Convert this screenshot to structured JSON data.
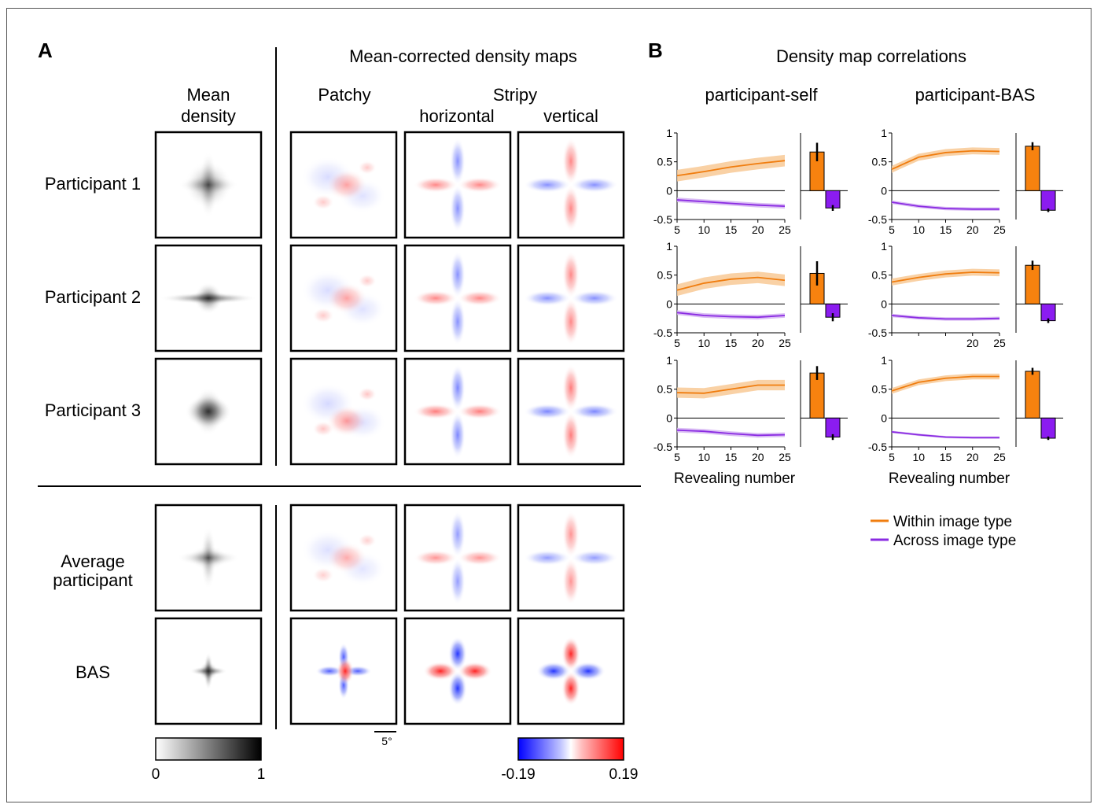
{
  "panel_a": {
    "letter": "A",
    "section_title": "Mean-corrected density maps",
    "col_mean": [
      "Mean",
      "density"
    ],
    "col_patchy": "Patchy",
    "col_stripy": "Stripy",
    "col_horizontal": "horizontal",
    "col_vertical": "vertical",
    "row_p1": "Participant 1",
    "row_p2": "Participant 2",
    "row_p3": "Participant 3",
    "row_avg": [
      "Average",
      "participant"
    ],
    "row_bas": "BAS",
    "scale_bar": "5°",
    "cbar_gray_min": "0",
    "cbar_gray_max": "1",
    "cbar_div_min": "-0.19",
    "cbar_div_max": "0.19"
  },
  "panel_b": {
    "letter": "B",
    "title": "Density map correlations",
    "col_self": "participant-self",
    "col_bas": "participant-BAS",
    "xlabel": "Revealing number",
    "legend_within": "Within image type",
    "legend_across": "Across image type"
  },
  "colors": {
    "within": "#f07d0f",
    "within_band": "#f8c995",
    "across": "#8a2be2",
    "across_band": "#d4b2f2",
    "bar_within": "#f7820f",
    "bar_across": "#8b1cf0"
  },
  "chart_data": [
    {
      "type": "line",
      "panel": "participant-self",
      "row": 1,
      "xlim": [
        5,
        25
      ],
      "ylim": [
        -0.5,
        1
      ],
      "x": [
        5,
        10,
        15,
        20,
        25
      ],
      "series": [
        {
          "name": "Within image type",
          "values": [
            0.26,
            0.33,
            0.41,
            0.47,
            0.52
          ],
          "band": 0.1
        },
        {
          "name": "Across image type",
          "values": [
            -0.16,
            -0.19,
            -0.22,
            -0.25,
            -0.27
          ],
          "band": 0.04
        }
      ],
      "bars": {
        "values": [
          0.67,
          -0.3
        ],
        "errors": [
          0.16,
          0.05
        ]
      }
    },
    {
      "type": "line",
      "panel": "participant-BAS",
      "row": 1,
      "xlim": [
        5,
        25
      ],
      "ylim": [
        -0.5,
        1
      ],
      "x": [
        5,
        10,
        15,
        20,
        25
      ],
      "series": [
        {
          "name": "Within image type",
          "values": [
            0.37,
            0.58,
            0.66,
            0.69,
            0.68
          ],
          "band": 0.06
        },
        {
          "name": "Across image type",
          "values": [
            -0.2,
            -0.27,
            -0.31,
            -0.32,
            -0.32
          ],
          "band": 0.03
        }
      ],
      "bars": {
        "values": [
          0.77,
          -0.34
        ],
        "errors": [
          0.07,
          0.03
        ]
      }
    },
    {
      "type": "line",
      "panel": "participant-self",
      "row": 2,
      "xlim": [
        5,
        25
      ],
      "ylim": [
        -0.5,
        1
      ],
      "x": [
        5,
        10,
        15,
        20,
        25
      ],
      "series": [
        {
          "name": "Within image type",
          "values": [
            0.24,
            0.36,
            0.43,
            0.46,
            0.41
          ],
          "band": 0.1
        },
        {
          "name": "Across image type",
          "values": [
            -0.15,
            -0.2,
            -0.22,
            -0.23,
            -0.2
          ],
          "band": 0.04
        }
      ],
      "bars": {
        "values": [
          0.53,
          -0.23
        ],
        "errors": [
          0.21,
          0.07
        ]
      }
    },
    {
      "type": "line",
      "panel": "participant-BAS",
      "row": 2,
      "xlim": [
        5,
        25
      ],
      "ylim": [
        -0.5,
        1
      ],
      "x": [
        5,
        10,
        15,
        20,
        25
      ],
      "series": [
        {
          "name": "Within image type",
          "values": [
            0.38,
            0.46,
            0.52,
            0.55,
            0.54
          ],
          "band": 0.06
        },
        {
          "name": "Across image type",
          "values": [
            -0.2,
            -0.24,
            -0.26,
            -0.26,
            -0.25
          ],
          "band": 0.03
        }
      ],
      "bars": {
        "values": [
          0.67,
          -0.29
        ],
        "errors": [
          0.08,
          0.04
        ]
      }
    },
    {
      "type": "line",
      "panel": "participant-self",
      "row": 3,
      "xlim": [
        5,
        25
      ],
      "ylim": [
        -0.5,
        1
      ],
      "x": [
        5,
        10,
        15,
        20,
        25
      ],
      "series": [
        {
          "name": "Within image type",
          "values": [
            0.44,
            0.43,
            0.5,
            0.57,
            0.57
          ],
          "band": 0.09
        },
        {
          "name": "Across image type",
          "values": [
            -0.21,
            -0.23,
            -0.27,
            -0.3,
            -0.29
          ],
          "band": 0.04
        }
      ],
      "bars": {
        "values": [
          0.78,
          -0.33
        ],
        "errors": [
          0.12,
          0.05
        ]
      }
    },
    {
      "type": "line",
      "panel": "participant-BAS",
      "row": 3,
      "xlim": [
        5,
        25
      ],
      "ylim": [
        -0.5,
        1
      ],
      "x": [
        5,
        10,
        15,
        20,
        25
      ],
      "series": [
        {
          "name": "Within image type",
          "values": [
            0.47,
            0.62,
            0.69,
            0.72,
            0.72
          ],
          "band": 0.05
        },
        {
          "name": "Across image type",
          "values": [
            -0.24,
            -0.29,
            -0.33,
            -0.34,
            -0.34
          ],
          "band": 0.02
        }
      ],
      "bars": {
        "values": [
          0.81,
          -0.35
        ],
        "errors": [
          0.06,
          0.03
        ]
      }
    }
  ]
}
